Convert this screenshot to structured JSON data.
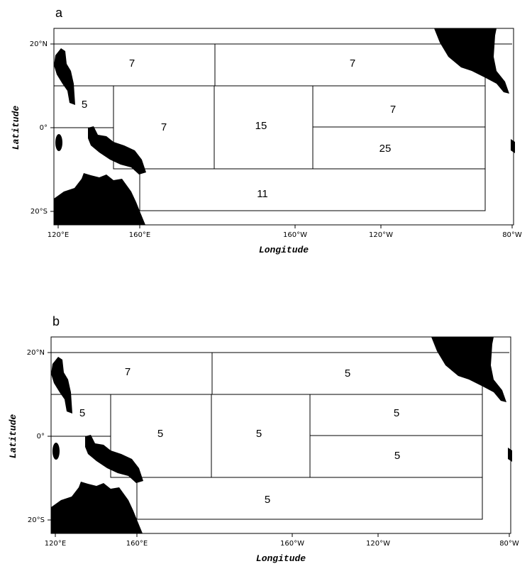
{
  "panels": [
    {
      "label": "a",
      "xlabel": "Longitude",
      "ylabel": "Latitude",
      "xticks": [
        "120°E",
        "160°E",
        "160°W",
        "120°W",
        "80°W"
      ],
      "yticks": [
        "20°N",
        "0°",
        "20°S"
      ],
      "regions": [
        "7",
        "7",
        "5",
        "7",
        "15",
        "7",
        "25",
        "11"
      ]
    },
    {
      "label": "b",
      "xlabel": "Longitude",
      "ylabel": "Latitude",
      "xticks": [
        "120°E",
        "160°E",
        "160°W",
        "120°W",
        "80°W"
      ],
      "yticks": [
        "20°N",
        "0°",
        "20°S"
      ],
      "regions": [
        "7",
        "5",
        "5",
        "5",
        "5",
        "5",
        "5",
        "5"
      ]
    }
  ]
}
